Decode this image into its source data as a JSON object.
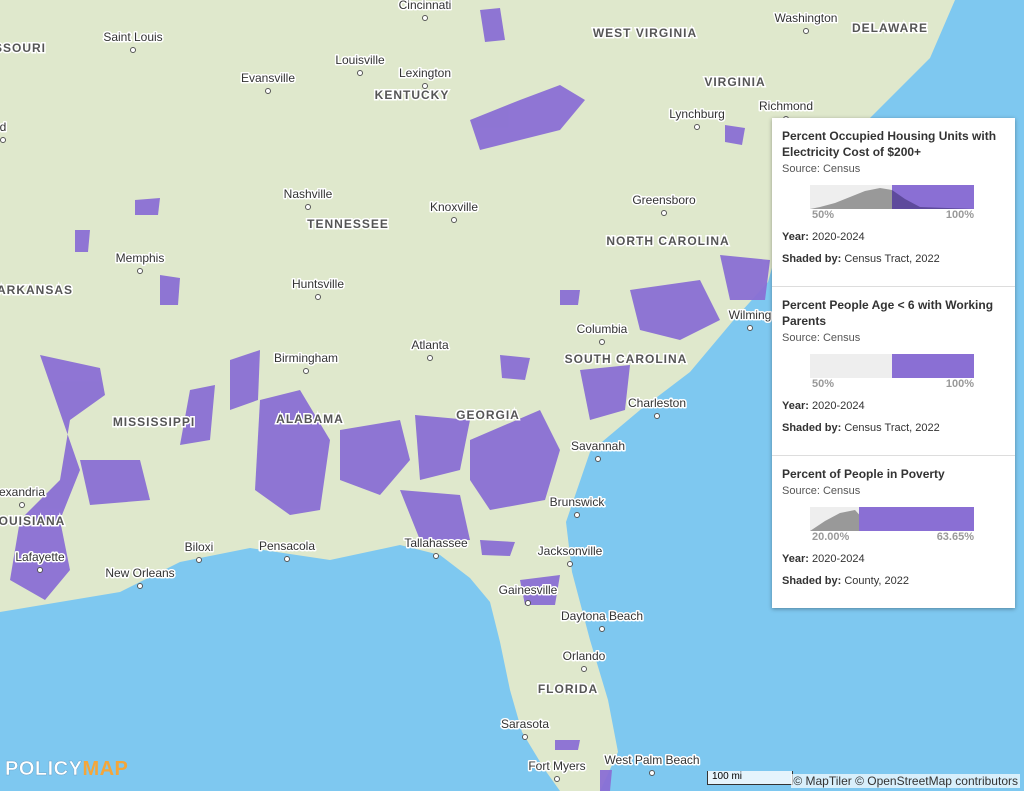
{
  "places": [
    "Cincinnati",
    "Washington",
    "Saint Louis",
    "Louisville",
    "Evansville",
    "Lexington",
    "Richmond",
    "Lynchburg",
    "d",
    "Nashville",
    "Greensboro",
    "Knoxville",
    "Memphis",
    "Huntsville",
    "Wilming",
    "Columbia",
    "Atlanta",
    "Birmingham",
    "Charleston",
    "Savannah",
    "exandria",
    "Brunswick",
    "Biloxi",
    "Pensacola",
    "Tallahassee",
    "Jacksonville",
    "Lafayette",
    "New Orleans",
    "Gainesville",
    "Daytona Beach",
    "Orlando",
    "Sarasota",
    "West Palm Beach",
    "Fort Myers"
  ],
  "regions": [
    "DELAWARE",
    "SSOURI",
    "WEST VIRGINIA",
    "KENTUCKY",
    "VIRGINIA",
    "TENNESSEE",
    "NORTH CAROLINA",
    "ARKANSAS",
    "SOUTH CAROLINA",
    "MISSISSIPPI",
    "ALABAMA",
    "GEORGIA",
    "OUISIANA",
    "FLORIDA"
  ],
  "legend": {
    "layers": [
      {
        "title": "Percent Occupied Housing Units with Electricity Cost of $200+",
        "source": "Source: Census",
        "range_low": "50%",
        "range_high": "100%",
        "year_label": "Year:",
        "year": "2020-2024",
        "shaded_label": "Shaded by:",
        "shaded": "Census Tract, 2022"
      },
      {
        "title": "Percent People Age < 6 with Working Parents",
        "source": "Source: Census",
        "range_low": "50%",
        "range_high": "100%",
        "year_label": "Year:",
        "year": "2020-2024",
        "shaded_label": "Shaded by:",
        "shaded": "Census Tract, 2022"
      },
      {
        "title": "Percent of People in Poverty",
        "source": "Source: Census",
        "range_low": "20.00%",
        "range_high": "63.65%",
        "year_label": "Year:",
        "year": "2020-2024",
        "shaded_label": "Shaded by:",
        "shaded": "County, 2022"
      }
    ]
  },
  "scale_bar": "100 mi",
  "attribution": "© MapTiler © OpenStreetMap contributors",
  "logo": {
    "policy": "POLICY",
    "map": "MAP"
  }
}
